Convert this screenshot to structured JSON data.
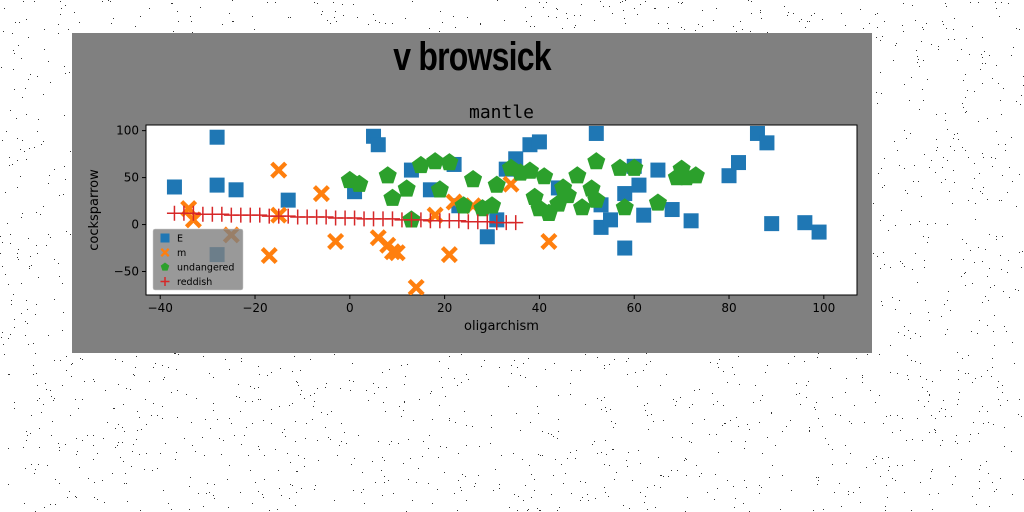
{
  "figure": {
    "suptitle": "v browsick",
    "background": "#808080"
  },
  "chart_data": {
    "type": "scatter",
    "title": "mantle",
    "xlabel": "oligarchism",
    "ylabel": "cocksparrow",
    "xlim": [
      -43,
      107
    ],
    "ylim": [
      -75,
      106
    ],
    "xticks": [
      -40,
      -20,
      0,
      20,
      40,
      60,
      80,
      100
    ],
    "xtick_labels": [
      "−40",
      "−20",
      "0",
      "20",
      "40",
      "60",
      "80",
      "100"
    ],
    "yticks": [
      -50,
      0,
      50,
      100
    ],
    "ytick_labels": [
      "−50",
      "0",
      "50",
      "100"
    ],
    "grid": false,
    "legend_position": "lower-left",
    "series": [
      {
        "name": "E",
        "marker": "square",
        "color": "#1f77b4",
        "points": [
          [
            -37,
            40
          ],
          [
            -28,
            93
          ],
          [
            -28,
            42
          ],
          [
            -24,
            37
          ],
          [
            -13,
            26
          ],
          [
            -28,
            -32
          ],
          [
            1,
            35
          ],
          [
            5,
            94
          ],
          [
            6,
            85
          ],
          [
            13,
            58
          ],
          [
            17,
            37
          ],
          [
            22,
            64
          ],
          [
            23,
            20
          ],
          [
            29,
            -13
          ],
          [
            31,
            5
          ],
          [
            33,
            59
          ],
          [
            35,
            70
          ],
          [
            38,
            85
          ],
          [
            40,
            88
          ],
          [
            44,
            39
          ],
          [
            52,
            97
          ],
          [
            53,
            21
          ],
          [
            53,
            -3
          ],
          [
            55,
            5
          ],
          [
            58,
            -25
          ],
          [
            58,
            33
          ],
          [
            60,
            62
          ],
          [
            61,
            42
          ],
          [
            62,
            10
          ],
          [
            65,
            58
          ],
          [
            68,
            16
          ],
          [
            72,
            4
          ],
          [
            80,
            52
          ],
          [
            82,
            66
          ],
          [
            86,
            97
          ],
          [
            88,
            87
          ],
          [
            89,
            1
          ],
          [
            96,
            2
          ],
          [
            99,
            -8
          ]
        ]
      },
      {
        "name": "m",
        "marker": "x",
        "color": "#ff7f0e",
        "points": [
          [
            -34,
            17
          ],
          [
            -33,
            5
          ],
          [
            -25,
            -11
          ],
          [
            -17,
            -33
          ],
          [
            -15,
            10
          ],
          [
            -15,
            58
          ],
          [
            -6,
            33
          ],
          [
            -3,
            -18
          ],
          [
            6,
            -14
          ],
          [
            8,
            -22
          ],
          [
            9,
            -29
          ],
          [
            10,
            -30
          ],
          [
            14,
            -67
          ],
          [
            18,
            10
          ],
          [
            21,
            -32
          ],
          [
            22,
            24
          ],
          [
            26,
            20
          ],
          [
            34,
            43
          ],
          [
            42,
            -18
          ]
        ]
      },
      {
        "name": "undangered",
        "marker": "pentagon",
        "color": "#2ca02c",
        "points": [
          [
            0,
            47
          ],
          [
            2,
            43
          ],
          [
            8,
            52
          ],
          [
            9,
            28
          ],
          [
            12,
            38
          ],
          [
            13,
            5
          ],
          [
            15,
            63
          ],
          [
            18,
            67
          ],
          [
            19,
            37
          ],
          [
            21,
            66
          ],
          [
            24,
            20
          ],
          [
            26,
            48
          ],
          [
            28,
            17
          ],
          [
            30,
            20
          ],
          [
            31,
            42
          ],
          [
            34,
            60
          ],
          [
            36,
            55
          ],
          [
            38,
            57
          ],
          [
            39,
            29
          ],
          [
            40,
            17
          ],
          [
            41,
            51
          ],
          [
            42,
            12
          ],
          [
            44,
            22
          ],
          [
            45,
            39
          ],
          [
            46,
            31
          ],
          [
            48,
            52
          ],
          [
            49,
            18
          ],
          [
            51,
            38
          ],
          [
            52,
            67
          ],
          [
            52,
            26
          ],
          [
            57,
            60
          ],
          [
            58,
            18
          ],
          [
            60,
            60
          ],
          [
            65,
            23
          ],
          [
            69,
            50
          ],
          [
            70,
            59
          ],
          [
            71,
            50
          ],
          [
            73,
            52
          ]
        ]
      },
      {
        "name": "reddish",
        "marker": "plus",
        "color": "#d62728",
        "points": [
          [
            -37,
            12
          ],
          [
            -35,
            12
          ],
          [
            -33,
            12
          ],
          [
            -31,
            11
          ],
          [
            -29,
            11
          ],
          [
            -27,
            11
          ],
          [
            -25,
            10
          ],
          [
            -23,
            10
          ],
          [
            -21,
            10
          ],
          [
            -19,
            10
          ],
          [
            -17,
            9
          ],
          [
            -15,
            9
          ],
          [
            -13,
            9
          ],
          [
            -11,
            8
          ],
          [
            -9,
            8
          ],
          [
            -7,
            8
          ],
          [
            -5,
            8
          ],
          [
            -3,
            7
          ],
          [
            -1,
            7
          ],
          [
            1,
            7
          ],
          [
            3,
            6
          ],
          [
            5,
            6
          ],
          [
            7,
            6
          ],
          [
            9,
            6
          ],
          [
            11,
            5
          ],
          [
            13,
            5
          ],
          [
            15,
            5
          ],
          [
            17,
            4
          ],
          [
            19,
            4
          ],
          [
            21,
            4
          ],
          [
            23,
            4
          ],
          [
            25,
            3
          ],
          [
            27,
            3
          ],
          [
            29,
            3
          ],
          [
            31,
            2
          ],
          [
            33,
            2
          ],
          [
            35,
            2
          ]
        ]
      }
    ]
  }
}
